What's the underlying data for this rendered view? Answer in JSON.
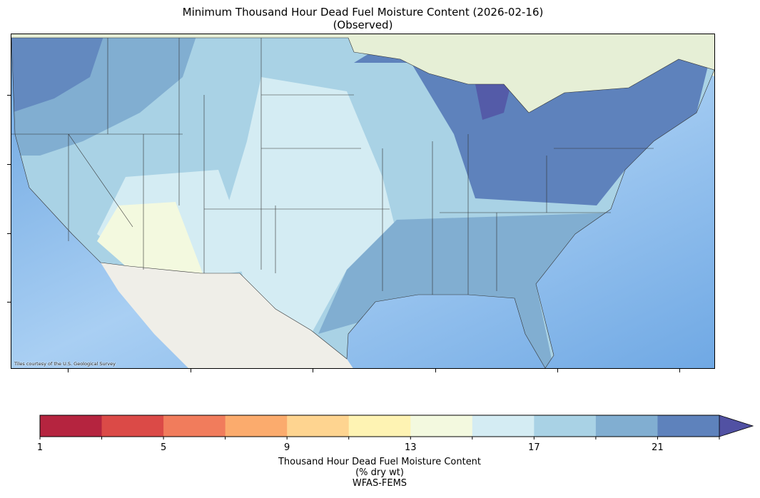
{
  "title": {
    "line1": "Minimum Thousand Hour Dead Fuel Moisture Content (2026-02-16)",
    "line2": "(Observed)"
  },
  "map": {
    "attribution": "Tiles courtesy of the U.S. Geological Survey",
    "ocean_color": "#84b8ea",
    "land_color": "#eeeeea"
  },
  "colorbar": {
    "label_line1": "Thousand Hour Dead Fuel Moisture Content",
    "label_line2": "(% dry wt)",
    "label_line3": "WFAS-FEMS",
    "boundaries": [
      1,
      3,
      5,
      7,
      9,
      11,
      13,
      15,
      17,
      19,
      21,
      23
    ],
    "colors": [
      "#b5243f",
      "#db4a47",
      "#f17c5c",
      "#fbab6d",
      "#fed490",
      "#fef3b3",
      "#f3f9df",
      "#d4ecf3",
      "#a9d2e5",
      "#81aed1",
      "#5e82bc"
    ],
    "extend_max_color": "#5151a3",
    "extend": "max",
    "ticks": [
      "1",
      "5",
      "9",
      "13",
      "17",
      "21"
    ]
  }
}
